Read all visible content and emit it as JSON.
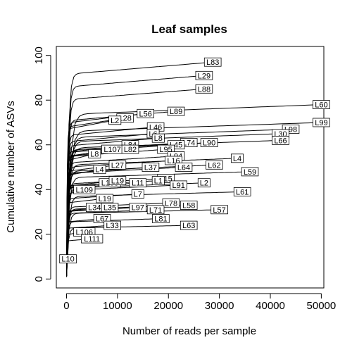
{
  "chart_data": {
    "type": "line",
    "title": "Leaf samples",
    "xlabel": "Number of reads per sample",
    "ylabel": "Cumulative number of ASVs",
    "xlim": [
      -2000,
      50500
    ],
    "ylim": [
      -4,
      104
    ],
    "xticks": [
      0,
      10000,
      20000,
      30000,
      40000,
      50000
    ],
    "xtick_labels": [
      "0",
      "10000",
      "20000",
      "30000",
      "40000",
      "50000"
    ],
    "yticks": [
      0,
      20,
      40,
      60,
      80,
      100
    ],
    "ytick_labels": [
      "0",
      "20",
      "40",
      "60",
      "80",
      "100"
    ],
    "grid": false,
    "legend": "none",
    "series": [
      {
        "name": "L83",
        "x_end": 28700,
        "y_end": 97
      },
      {
        "name": "L29",
        "x_end": 27000,
        "y_end": 91
      },
      {
        "name": "L88",
        "x_end": 27000,
        "y_end": 85
      },
      {
        "name": "L60",
        "x_end": 50000,
        "y_end": 78
      },
      {
        "name": "L99",
        "x_end": 50000,
        "y_end": 70
      },
      {
        "name": "L98",
        "x_end": 44000,
        "y_end": 67
      },
      {
        "name": "L30",
        "x_end": 42000,
        "y_end": 65
      },
      {
        "name": "L66",
        "x_end": 42000,
        "y_end": 62
      },
      {
        "name": "L89",
        "x_end": 21500,
        "y_end": 75
      },
      {
        "name": "L56",
        "x_end": 15500,
        "y_end": 74
      },
      {
        "name": "L28",
        "x_end": 11500,
        "y_end": 72
      },
      {
        "name": "L2",
        "x_end": 9500,
        "y_end": 71
      },
      {
        "name": "L46",
        "x_end": 17500,
        "y_end": 68
      },
      {
        "name": "L6",
        "x_end": 17000,
        "y_end": 65
      },
      {
        "name": "L8",
        "x_end": 18000,
        "y_end": 63
      },
      {
        "name": "L90",
        "x_end": 28000,
        "y_end": 61
      },
      {
        "name": "L74",
        "x_end": 24000,
        "y_end": 61
      },
      {
        "name": "L45",
        "x_end": 21500,
        "y_end": 60
      },
      {
        "name": "L84",
        "x_end": 12500,
        "y_end": 60
      },
      {
        "name": "L95",
        "x_end": 19500,
        "y_end": 58
      },
      {
        "name": "L107",
        "x_end": 9000,
        "y_end": 58
      },
      {
        "name": "L82",
        "x_end": 12500,
        "y_end": 58
      },
      {
        "name": "L8",
        "x_end": 5500,
        "y_end": 56
      },
      {
        "name": "L4",
        "x_end": 33500,
        "y_end": 54
      },
      {
        "name": "L94",
        "x_end": 21500,
        "y_end": 55
      },
      {
        "name": "L16",
        "x_end": 21000,
        "y_end": 53
      },
      {
        "name": "L64",
        "x_end": 23000,
        "y_end": 50
      },
      {
        "name": "L62",
        "x_end": 29000,
        "y_end": 51
      },
      {
        "name": "L59",
        "x_end": 36000,
        "y_end": 48
      },
      {
        "name": "L27",
        "x_end": 10000,
        "y_end": 51
      },
      {
        "name": "L37",
        "x_end": 16500,
        "y_end": 50
      },
      {
        "name": "L4",
        "x_end": 6500,
        "y_end": 49
      },
      {
        "name": "L15",
        "x_end": 19500,
        "y_end": 45
      },
      {
        "name": "L2",
        "x_end": 27000,
        "y_end": 43
      },
      {
        "name": "L1",
        "x_end": 18000,
        "y_end": 44
      },
      {
        "name": "L103",
        "x_end": 8500,
        "y_end": 43
      },
      {
        "name": "L19",
        "x_end": 10000,
        "y_end": 44
      },
      {
        "name": "L11",
        "x_end": 14000,
        "y_end": 43
      },
      {
        "name": "L91",
        "x_end": 22000,
        "y_end": 42
      },
      {
        "name": "L109",
        "x_end": 3500,
        "y_end": 40
      },
      {
        "name": "L61",
        "x_end": 34500,
        "y_end": 39
      },
      {
        "name": "L7",
        "x_end": 14000,
        "y_end": 38
      },
      {
        "name": "L19",
        "x_end": 7500,
        "y_end": 36
      },
      {
        "name": "L78",
        "x_end": 20500,
        "y_end": 34
      },
      {
        "name": "L58",
        "x_end": 24000,
        "y_end": 33
      },
      {
        "name": "L57",
        "x_end": 30000,
        "y_end": 31
      },
      {
        "name": "L97",
        "x_end": 14000,
        "y_end": 32
      },
      {
        "name": "L34",
        "x_end": 5500,
        "y_end": 32
      },
      {
        "name": "L35",
        "x_end": 8500,
        "y_end": 32
      },
      {
        "name": "L71",
        "x_end": 17500,
        "y_end": 31
      },
      {
        "name": "L81",
        "x_end": 18500,
        "y_end": 27
      },
      {
        "name": "L67",
        "x_end": 7000,
        "y_end": 27
      },
      {
        "name": "L63",
        "x_end": 24000,
        "y_end": 24
      },
      {
        "name": "L33",
        "x_end": 9000,
        "y_end": 24
      },
      {
        "name": "L106",
        "x_end": 3500,
        "y_end": 21
      },
      {
        "name": "L111",
        "x_end": 5000,
        "y_end": 18
      },
      {
        "name": "L10",
        "x_end": 300,
        "y_end": 9
      }
    ]
  }
}
